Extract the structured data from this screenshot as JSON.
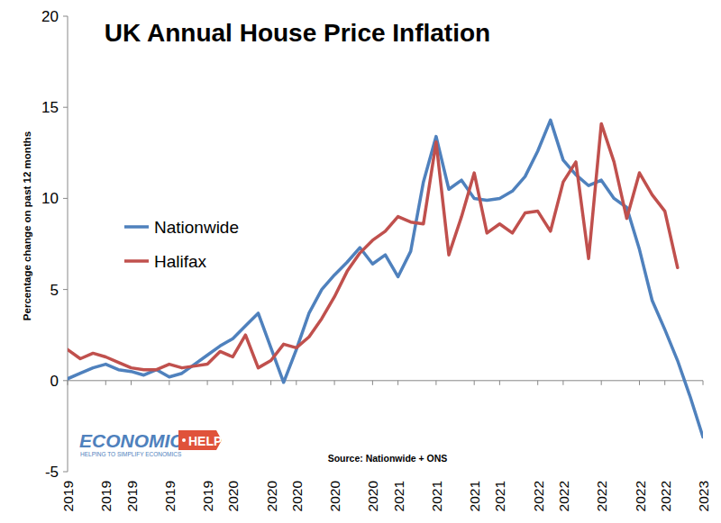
{
  "chart_data": {
    "type": "line",
    "title": "UK Annual House Price Inflation",
    "y_label": "Percentage change on past 12 months",
    "annotations": [
      "Source: Nationwide + ONS",
      "ECONOMICS",
      "HELP",
      "HELPING TO SIMPLIFY ECONOMICS"
    ],
    "categories": [
      "2019",
      null,
      null,
      "2019",
      null,
      "2019",
      null,
      null,
      "2019",
      null,
      null,
      "2019",
      null,
      "2020",
      null,
      null,
      "2020",
      null,
      "2020",
      null,
      null,
      "2020",
      null,
      null,
      "2020",
      null,
      "2021",
      null,
      null,
      "2021",
      null,
      null,
      "2021",
      null,
      "2021",
      null,
      null,
      "2022",
      null,
      "2022",
      null,
      null,
      "2022",
      null,
      null,
      "2022",
      null,
      "2022",
      null,
      null,
      "2023"
    ],
    "series": [
      {
        "name": "Nationwide",
        "color": "#4f81bd",
        "values": [
          0.1,
          0.4,
          0.7,
          0.9,
          0.6,
          0.5,
          0.3,
          0.6,
          0.2,
          0.4,
          0.9,
          1.4,
          1.9,
          2.3,
          3.0,
          3.7,
          1.8,
          -0.1,
          1.7,
          3.7,
          5.0,
          5.8,
          6.5,
          7.3,
          6.4,
          6.9,
          5.7,
          7.1,
          10.9,
          13.4,
          10.5,
          11.0,
          10.0,
          9.9,
          10.0,
          10.4,
          11.2,
          12.6,
          14.3,
          12.1,
          11.3,
          10.7,
          11.0,
          10.0,
          9.5,
          7.2,
          4.4,
          2.8,
          1.1,
          -0.9,
          -3.1
        ]
      },
      {
        "name": "Halifax",
        "color": "#c0504d",
        "values": [
          1.7,
          1.2,
          1.5,
          1.3,
          1.0,
          0.7,
          0.6,
          0.6,
          0.9,
          0.7,
          0.8,
          0.9,
          1.6,
          1.3,
          2.5,
          0.7,
          1.1,
          2.0,
          1.8,
          2.4,
          3.4,
          4.6,
          6.0,
          7.0,
          7.7,
          8.2,
          9.0,
          8.7,
          8.6,
          13.1,
          6.9,
          9.0,
          11.4,
          8.1,
          8.6,
          8.1,
          9.2,
          9.3,
          8.2,
          10.9,
          12.0,
          6.7,
          14.1,
          12.0,
          8.9,
          11.4,
          10.2,
          9.3,
          6.2,
          null,
          null
        ]
      }
    ],
    "ylim": [
      -5,
      20
    ],
    "yticks": [
      -5,
      0,
      5,
      10,
      15,
      20
    ],
    "grid": false,
    "legend": "left"
  }
}
